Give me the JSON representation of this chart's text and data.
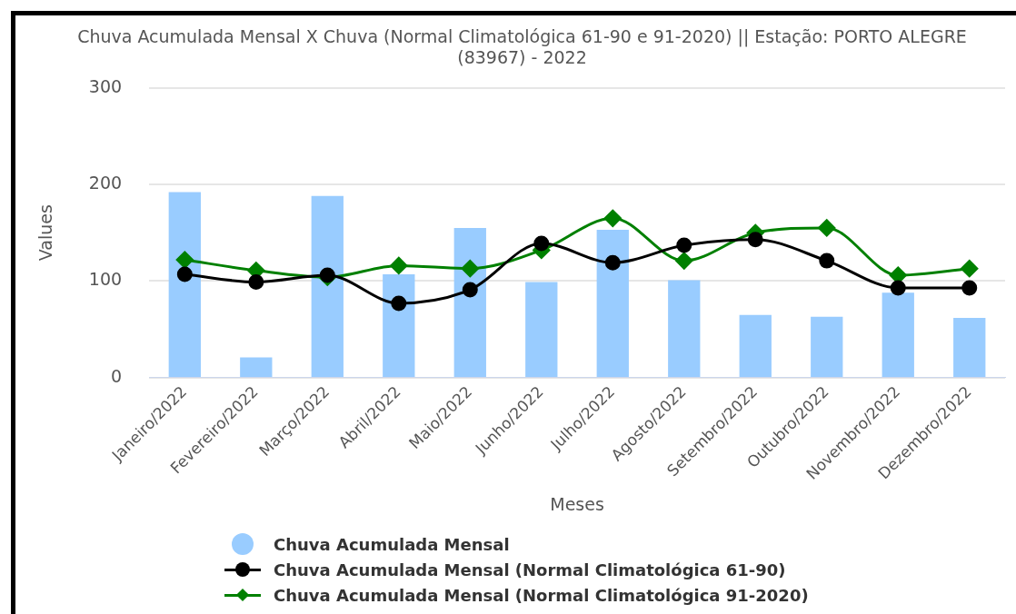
{
  "chart_data": {
    "type": "bar",
    "title": "Chuva Acumulada Mensal X Chuva (Normal Climatológica 61-90 e 91-2020) || Estação: PORTO ALEGRE (83967) - 2022",
    "xlabel": "Meses",
    "ylabel": "Values",
    "categories": [
      "Janeiro/2022",
      "Fevereiro/2022",
      "Março/2022",
      "Abril/2022",
      "Maio/2022",
      "Junho/2022",
      "Julho/2022",
      "Agosto/2022",
      "Setembro/2022",
      "Outubro/2022",
      "Novembro/2022",
      "Dezembro/2022"
    ],
    "series": [
      {
        "name": "Chuva Acumulada Mensal",
        "color": "#99ccff",
        "values": [
          192,
          21,
          188,
          107,
          155,
          99,
          153,
          101,
          65,
          63,
          88,
          62
        ]
      },
      {
        "name": "Chuva Acumulada Mensal (Normal Climatológica 61-90)",
        "type": "line",
        "color": "#000000",
        "marker": "circle",
        "values": [
          107,
          99,
          106,
          77,
          91,
          139,
          119,
          137,
          143,
          121,
          93,
          93
        ]
      },
      {
        "name": "Chuva Acumulada Mensal (Normal Climatológica 91-2020)",
        "type": "line",
        "color": "#008000",
        "marker": "diamond",
        "values": [
          122,
          111,
          104,
          116,
          113,
          132,
          165,
          121,
          150,
          155,
          106,
          113
        ]
      }
    ],
    "ylim": [
      0,
      300
    ],
    "yticks": [
      0,
      100,
      200,
      300
    ],
    "grid": "y",
    "legend": "bottom"
  }
}
